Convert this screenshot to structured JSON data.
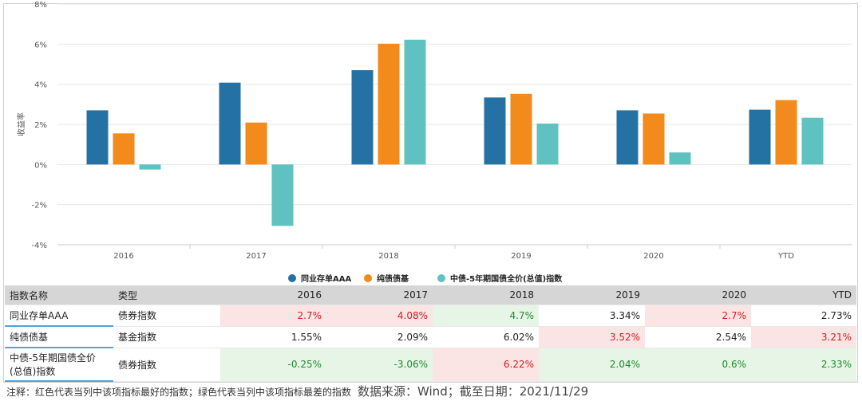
{
  "chart_data": {
    "type": "bar",
    "categories": [
      "2016",
      "2017",
      "2018",
      "2019",
      "2020",
      "YTD"
    ],
    "series": [
      {
        "name": "同业存单AAA",
        "color": "#2471a3",
        "values": [
          2.7,
          4.08,
          4.7,
          3.34,
          2.7,
          2.73
        ]
      },
      {
        "name": "纯债债基",
        "color": "#f28a1c",
        "values": [
          1.55,
          2.09,
          6.02,
          3.52,
          2.54,
          3.21
        ]
      },
      {
        "name": "中债-5年期国债全价(总值)指数",
        "color": "#5fc2c0",
        "values": [
          -0.25,
          -3.06,
          6.22,
          2.04,
          0.6,
          2.33
        ]
      }
    ],
    "ylabel": "收益率",
    "ylim": [
      -4,
      8
    ],
    "yticks": [
      "-4%",
      "-2%",
      "0%",
      "2%",
      "4%",
      "6%",
      "8%"
    ],
    "grid": true,
    "legend": "bottom"
  },
  "table": {
    "headers": [
      "指数名称",
      "类型",
      "2016",
      "2017",
      "2018",
      "2019",
      "2020",
      "YTD"
    ],
    "rows": [
      {
        "name": "同业存单AAA",
        "type": "债券指数",
        "values": [
          "2.7%",
          "4.08%",
          "4.7%",
          "3.34%",
          "2.7%",
          "2.73%"
        ],
        "marks": [
          "red",
          "red",
          "green",
          "",
          "red",
          ""
        ]
      },
      {
        "name": "纯债债基",
        "type": "基金指数",
        "values": [
          "1.55%",
          "2.09%",
          "6.02%",
          "3.52%",
          "2.54%",
          "3.21%"
        ],
        "marks": [
          "",
          "",
          "",
          "red",
          "",
          "red"
        ]
      },
      {
        "name": "中债-5年期国债全价(总值)指数",
        "type": "债券指数",
        "values": [
          "-0.25%",
          "-3.06%",
          "6.22%",
          "2.04%",
          "0.6%",
          "2.33%"
        ],
        "marks": [
          "green",
          "green",
          "red",
          "green",
          "green",
          "green"
        ]
      }
    ]
  },
  "footnote": {
    "note": "注释：红色代表当列中该项指标最好的指数；绿色代表当列中该项指标最差的指数",
    "source": "数据来源：Wind；截至日期：2021/11/29"
  }
}
